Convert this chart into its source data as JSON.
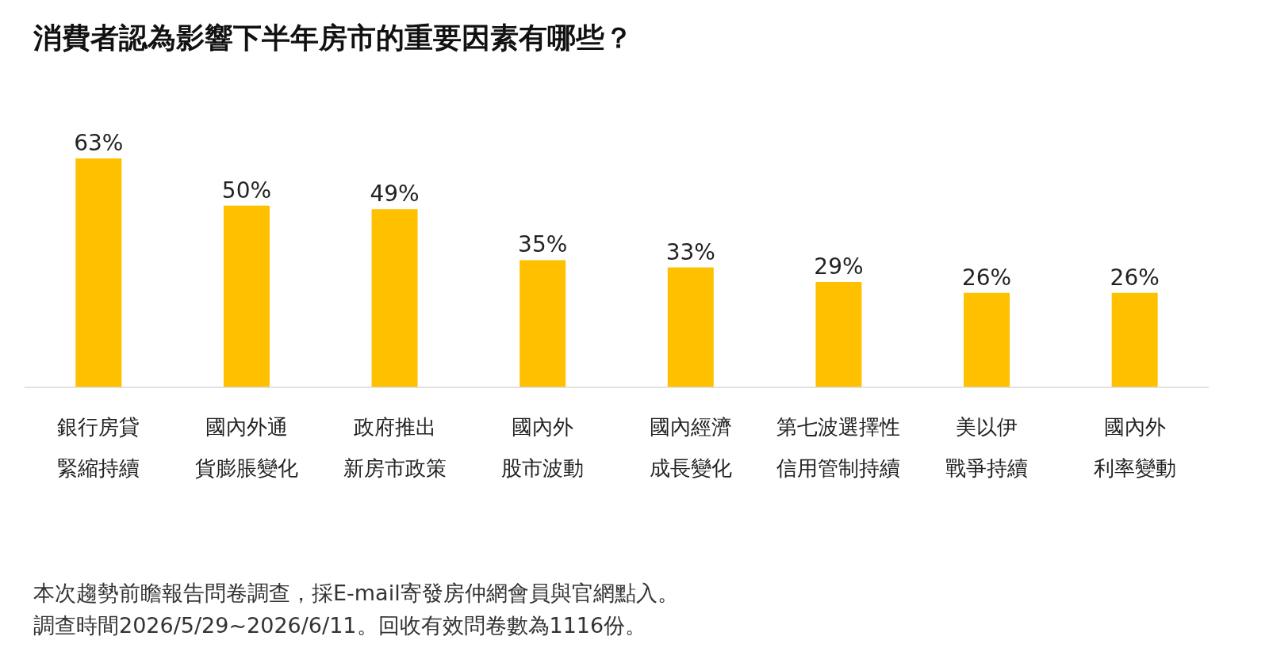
{
  "chart_data": {
    "type": "bar",
    "title": "消費者認為影響下半年房市的重要因素有哪些？",
    "categories": [
      "銀行房貸緊縮持續",
      "國內外通貨膨脹變化",
      "政府推出新房市政策",
      "國內外股市波動",
      "國內經濟成長變化",
      "第七波選擇性信用管制持續",
      "美以伊戰爭持續",
      "國內外利率變動"
    ],
    "values": [
      63,
      50,
      49,
      35,
      33,
      29,
      26,
      26
    ],
    "value_labels": [
      "63%",
      "50%",
      "49%",
      "35%",
      "33%",
      "29%",
      "26%",
      "26%"
    ],
    "color": "#ffc000",
    "annotations": [
      "本次趨勢前瞻報告問卷調查，採E-mail寄發房仲網會員與官網點入。",
      "調查時間2026/5/29~2026/6/11。回收有效問卷數為1116份。"
    ]
  }
}
